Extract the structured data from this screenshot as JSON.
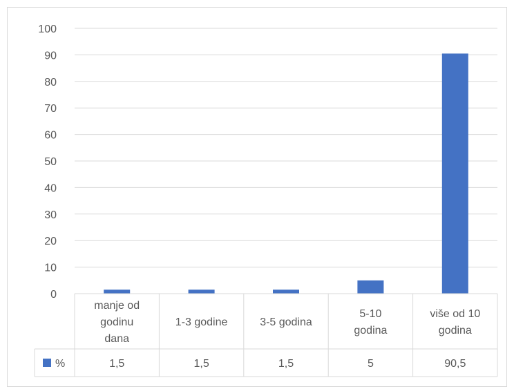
{
  "chart_data": {
    "type": "bar",
    "categories": [
      [
        "manje od",
        "godinu",
        "dana"
      ],
      [
        "1-3 godine"
      ],
      [
        "3-5 godina"
      ],
      [
        "5-10",
        "godina"
      ],
      [
        "više od 10",
        "godina"
      ]
    ],
    "series": [
      {
        "name": "%",
        "values": [
          1.5,
          1.5,
          1.5,
          5,
          90.5
        ],
        "labels": [
          "1,5",
          "1,5",
          "1,5",
          "5",
          "90,5"
        ],
        "color": "#4472c4"
      }
    ],
    "yticks": [
      "0",
      "10",
      "20",
      "30",
      "40",
      "50",
      "60",
      "70",
      "80",
      "90",
      "100"
    ],
    "ylim": [
      0,
      100
    ],
    "grid": true,
    "data_table": true,
    "gridline_color": "#d9d9d9",
    "text_color": "#595959"
  }
}
